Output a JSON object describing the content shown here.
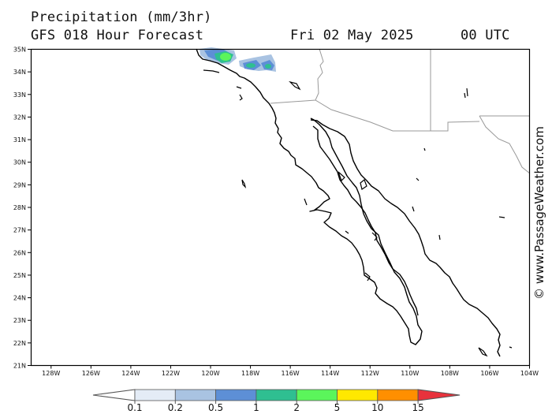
{
  "header": {
    "title": "Precipitation (mm/3hr)",
    "subtitle": "GFS 018 Hour Forecast",
    "date": "Fri 02 May 2025",
    "time": "00 UTC"
  },
  "credit": "© www.PassageWeather.com",
  "map": {
    "lat_labels": [
      "35N",
      "34N",
      "33N",
      "32N",
      "31N",
      "30N",
      "29N",
      "28N",
      "27N",
      "26N",
      "25N",
      "24N",
      "23N",
      "22N",
      "21N"
    ],
    "lon_labels": [
      "128W",
      "126W",
      "124W",
      "122W",
      "120W",
      "118W",
      "116W",
      "114W",
      "112W",
      "110W",
      "108W",
      "106W",
      "104W"
    ],
    "lat_range": [
      21,
      35
    ],
    "lon_range": [
      -129,
      -104
    ],
    "coast_color": "#000000",
    "border_color": "#999999"
  },
  "legend": {
    "labels": [
      "0.1",
      "0.2",
      "0.5",
      "1",
      "2",
      "5",
      "10",
      "15"
    ],
    "colors": [
      "#ffffff",
      "#e4ecf6",
      "#a9c3e2",
      "#5d8fd6",
      "#2fbf91",
      "#5bf55b",
      "#ffe800",
      "#ff8f00",
      "#e8323c"
    ]
  }
}
